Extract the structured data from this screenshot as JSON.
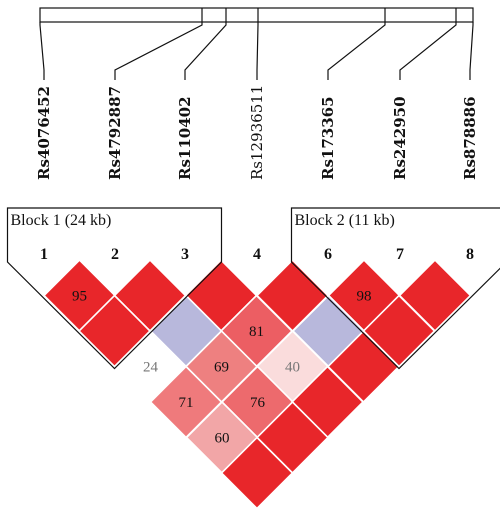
{
  "snps": [
    {
      "id": 1,
      "name": "Rs4076452",
      "bold": true
    },
    {
      "id": 2,
      "name": "Rs4792887",
      "bold": true
    },
    {
      "id": 3,
      "name": "Rs110402",
      "bold": true
    },
    {
      "id": 4,
      "name": "Rs12936511",
      "bold": false
    },
    {
      "id": 5,
      "name": "Rs173365",
      "bold": true
    },
    {
      "id": 6,
      "name": "Rs242950",
      "bold": true
    },
    {
      "id": 7,
      "name": "Rs878886",
      "bold": true
    }
  ],
  "markers": [
    "1",
    "2",
    "3",
    "4",
    "6",
    "7",
    "8"
  ],
  "blocks": [
    {
      "label": "Block 1 (24 kb)",
      "first_marker_index": 0,
      "last_marker_index": 2
    },
    {
      "label": "Block 2 (11 kb)",
      "first_marker_index": 4,
      "last_marker_index": 6
    }
  ],
  "ld_cells": [
    {
      "i": 0,
      "j": 1,
      "value": "95",
      "color": "#e8262a",
      "text_color": "#111111"
    },
    {
      "i": 1,
      "j": 2,
      "value": "",
      "color": "#e8262a",
      "text_color": "#111111"
    },
    {
      "i": 2,
      "j": 3,
      "value": "",
      "color": "#e8262a",
      "text_color": "#111111"
    },
    {
      "i": 3,
      "j": 4,
      "value": "",
      "color": "#e8262a",
      "text_color": "#111111"
    },
    {
      "i": 4,
      "j": 5,
      "value": "98",
      "color": "#e8262a",
      "text_color": "#111111"
    },
    {
      "i": 5,
      "j": 6,
      "value": "",
      "color": "#e8262a",
      "text_color": "#111111"
    },
    {
      "i": 0,
      "j": 2,
      "value": "",
      "color": "#e8262a",
      "text_color": "#111111"
    },
    {
      "i": 1,
      "j": 3,
      "value": "",
      "color": "#b8b8dc",
      "text_color": "#111111"
    },
    {
      "i": 2,
      "j": 4,
      "value": "81",
      "color": "#ec5e63",
      "text_color": "#111111"
    },
    {
      "i": 3,
      "j": 5,
      "value": "",
      "color": "#b8b8dc",
      "text_color": "#111111"
    },
    {
      "i": 4,
      "j": 6,
      "value": "",
      "color": "#e8262a",
      "text_color": "#111111"
    },
    {
      "i": 0,
      "j": 3,
      "value": "24",
      "color": "#ffffff",
      "text_color": "#777777"
    },
    {
      "i": 1,
      "j": 4,
      "value": "69",
      "color": "#ee8080",
      "text_color": "#111111"
    },
    {
      "i": 2,
      "j": 5,
      "value": "40",
      "color": "#fadcdc",
      "text_color": "#777777"
    },
    {
      "i": 3,
      "j": 6,
      "value": "",
      "color": "#e8262a",
      "text_color": "#111111"
    },
    {
      "i": 0,
      "j": 4,
      "value": "71",
      "color": "#ef7a7c",
      "text_color": "#111111"
    },
    {
      "i": 1,
      "j": 5,
      "value": "76",
      "color": "#ed6a6d",
      "text_color": "#111111"
    },
    {
      "i": 2,
      "j": 6,
      "value": "",
      "color": "#e8262a",
      "text_color": "#111111"
    },
    {
      "i": 0,
      "j": 5,
      "value": "60",
      "color": "#f2a6a7",
      "text_color": "#111111"
    },
    {
      "i": 1,
      "j": 6,
      "value": "",
      "color": "#e8262a",
      "text_color": "#111111"
    },
    {
      "i": 0,
      "j": 6,
      "value": "",
      "color": "#e8262a",
      "text_color": "#111111"
    }
  ]
}
